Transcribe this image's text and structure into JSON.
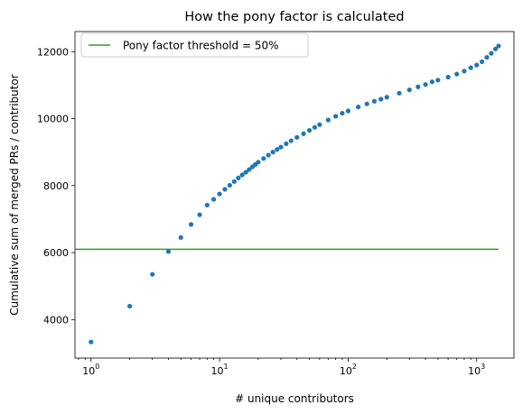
{
  "chart_data": {
    "type": "scatter",
    "title": "How the pony factor is calculated",
    "xlabel": "# unique contributors",
    "ylabel": "Cumulative sum of merged PRs / contributor",
    "xscale": "log",
    "xlim": [
      0.75,
      1950
    ],
    "ylim": [
      2850,
      12600
    ],
    "x_ticks": [
      {
        "value": 1,
        "base": "10",
        "exp": "0"
      },
      {
        "value": 10,
        "base": "10",
        "exp": "1"
      },
      {
        "value": 100,
        "base": "10",
        "exp": "2"
      },
      {
        "value": 1000,
        "base": "10",
        "exp": "3"
      }
    ],
    "y_ticks": [
      4000,
      6000,
      8000,
      10000,
      12000
    ],
    "grid": false,
    "legend_position": "upper-left",
    "series": [
      {
        "name": "",
        "kind": "scatter",
        "color": "#1f77b4",
        "points": [
          [
            1,
            3330
          ],
          [
            2,
            4400
          ],
          [
            3,
            5350
          ],
          [
            4,
            6030
          ],
          [
            5,
            6450
          ],
          [
            6,
            6840
          ],
          [
            7,
            7130
          ],
          [
            8,
            7420
          ],
          [
            9,
            7590
          ],
          [
            10,
            7750
          ],
          [
            11,
            7890
          ],
          [
            12,
            8010
          ],
          [
            13,
            8120
          ],
          [
            14,
            8230
          ],
          [
            15,
            8320
          ],
          [
            16,
            8400
          ],
          [
            17,
            8480
          ],
          [
            18,
            8560
          ],
          [
            19,
            8630
          ],
          [
            20,
            8700
          ],
          [
            22,
            8810
          ],
          [
            24,
            8910
          ],
          [
            26,
            9000
          ],
          [
            28,
            9080
          ],
          [
            30,
            9150
          ],
          [
            33,
            9250
          ],
          [
            36,
            9340
          ],
          [
            40,
            9440
          ],
          [
            45,
            9550
          ],
          [
            50,
            9650
          ],
          [
            55,
            9740
          ],
          [
            60,
            9820
          ],
          [
            70,
            9960
          ],
          [
            80,
            10070
          ],
          [
            90,
            10160
          ],
          [
            100,
            10230
          ],
          [
            120,
            10350
          ],
          [
            140,
            10440
          ],
          [
            160,
            10520
          ],
          [
            180,
            10580
          ],
          [
            200,
            10640
          ],
          [
            250,
            10760
          ],
          [
            300,
            10860
          ],
          [
            350,
            10950
          ],
          [
            400,
            11020
          ],
          [
            450,
            11100
          ],
          [
            500,
            11150
          ],
          [
            600,
            11240
          ],
          [
            700,
            11330
          ],
          [
            800,
            11420
          ],
          [
            900,
            11520
          ],
          [
            1000,
            11600
          ],
          [
            1100,
            11700
          ],
          [
            1200,
            11830
          ],
          [
            1300,
            11950
          ],
          [
            1400,
            12080
          ],
          [
            1480,
            12170
          ]
        ]
      },
      {
        "name": "Pony factor threshold = 50%",
        "kind": "line",
        "color": "#2ca02c",
        "x": [
          0.75,
          1480
        ],
        "y": [
          6100,
          6100
        ]
      }
    ]
  }
}
